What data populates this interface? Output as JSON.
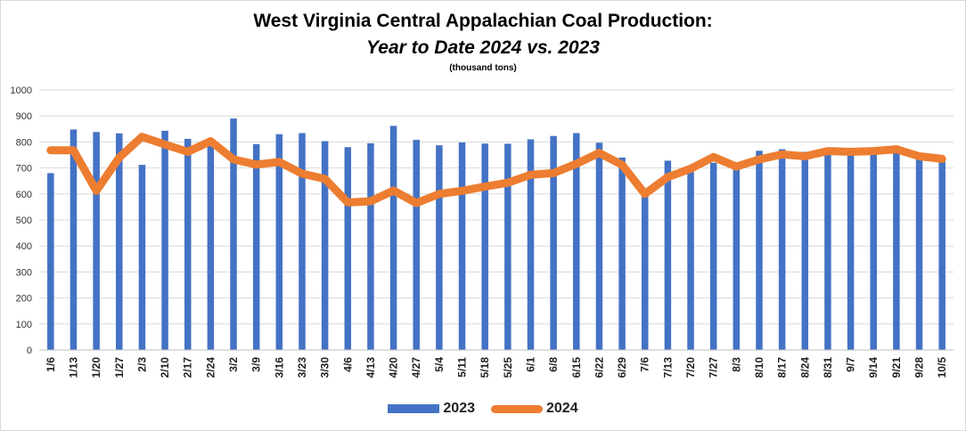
{
  "chart_data": {
    "type": "bar+line",
    "title": "West Virginia Central Appalachian Coal Production:",
    "subtitle": "Year to Date 2024 vs. 2023",
    "units": "(thousand tons)",
    "categories": [
      "1/6",
      "1/13",
      "1/20",
      "1/27",
      "2/3",
      "2/10",
      "2/17",
      "2/24",
      "3/2",
      "3/9",
      "3/16",
      "3/23",
      "3/30",
      "4/6",
      "4/13",
      "4/20",
      "4/27",
      "5/4",
      "5/11",
      "5/18",
      "5/25",
      "6/1",
      "6/8",
      "6/15",
      "6/22",
      "6/29",
      "7/6",
      "7/13",
      "7/20",
      "7/27",
      "8/3",
      "8/10",
      "8/17",
      "8/24",
      "8/31",
      "9/7",
      "9/14",
      "9/21",
      "9/28",
      "10/5"
    ],
    "ylim": [
      0,
      1000
    ],
    "yticks": [
      0,
      100,
      200,
      300,
      400,
      500,
      600,
      700,
      800,
      900,
      1000
    ],
    "grid": true,
    "legend_position": "bottom",
    "series": [
      {
        "name": "2023",
        "type": "bar",
        "color": "#4472c4",
        "values": [
          680,
          848,
          838,
          833,
          712,
          843,
          812,
          792,
          890,
          792,
          830,
          834,
          803,
          780,
          795,
          862,
          808,
          787,
          798,
          794,
          793,
          810,
          823,
          834,
          797,
          740,
          622,
          728,
          703,
          720,
          712,
          766,
          772,
          762,
          752,
          752,
          755,
          758,
          740,
          730
        ]
      },
      {
        "name": "2024",
        "type": "line",
        "color": "#ed7d31",
        "values": [
          768,
          768,
          612,
          740,
          820,
          790,
          762,
          803,
          733,
          713,
          723,
          678,
          658,
          567,
          572,
          613,
          565,
          600,
          612,
          628,
          643,
          674,
          680,
          716,
          758,
          712,
          600,
          665,
          697,
          742,
          705,
          733,
          752,
          745,
          765,
          762,
          765,
          772,
          745,
          735
        ]
      }
    ]
  }
}
